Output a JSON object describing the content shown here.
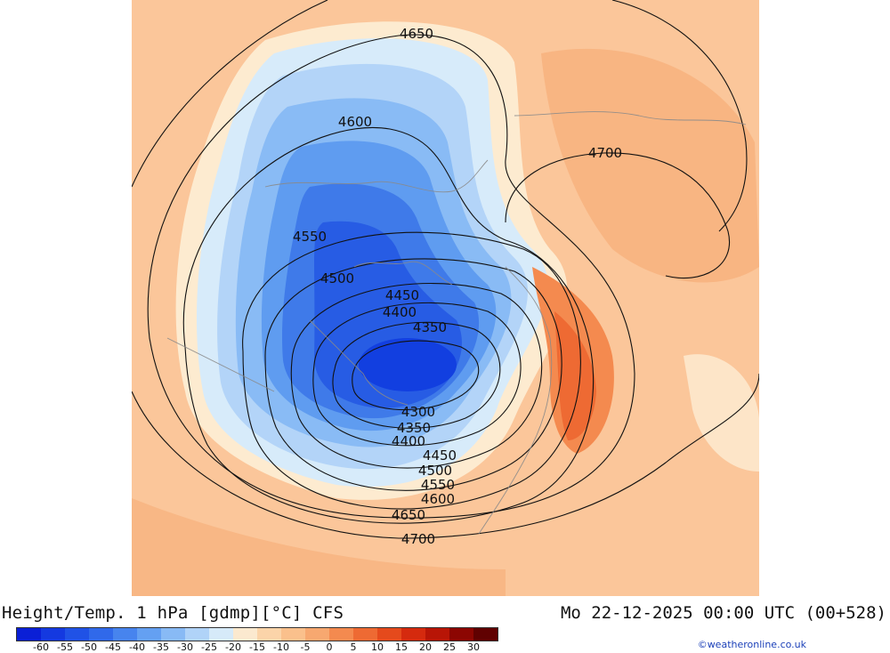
{
  "title": "Height/Temp. 1 hPa [gdmp][°C] CFS",
  "valid_time": "Mo 22-12-2025 00:00 UTC (00+528)",
  "credit": "©weatheronline.co.uk",
  "contour_labels": [
    "4650",
    "4600",
    "4550",
    "4500",
    "4450",
    "4400",
    "4350",
    "4300",
    "4350",
    "4400",
    "4450",
    "4500",
    "4550",
    "4600",
    "4650",
    "4700",
    "4700"
  ],
  "colorbar": {
    "tick_labels": [
      "-60",
      "-55",
      "-50",
      "-45",
      "-40",
      "-35",
      "-30",
      "-25",
      "-20",
      "-15",
      "-10",
      "-5",
      "0",
      "5",
      "10",
      "15",
      "20",
      "25",
      "30"
    ],
    "colors": [
      "#0a1fd6",
      "#1439e0",
      "#2052e6",
      "#3069ea",
      "#4784ee",
      "#64a0f2",
      "#88baf5",
      "#b0d3f8",
      "#d6eaf9",
      "#fbe9cf",
      "#fbd4a9",
      "#fac08c",
      "#f7a870",
      "#f48a4f",
      "#ee6a33",
      "#e54a1c",
      "#d52a0e",
      "#b81506",
      "#8c0602",
      "#600101"
    ]
  }
}
